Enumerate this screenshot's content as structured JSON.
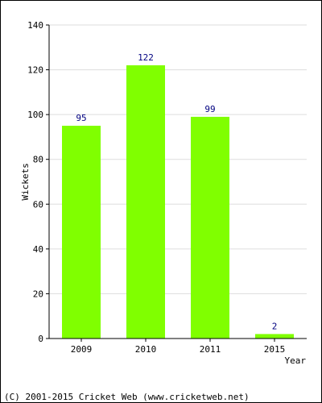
{
  "chart_data": {
    "type": "bar",
    "categories": [
      "2009",
      "2010",
      "2011",
      "2015"
    ],
    "values": [
      95,
      122,
      99,
      2
    ],
    "data_labels": [
      "95",
      "122",
      "99",
      "2"
    ],
    "title": "",
    "xlabel": "Year",
    "ylabel": "Wickets",
    "ylim": [
      0,
      140
    ],
    "yticks": [
      "0",
      "20",
      "40",
      "60",
      "80",
      "100",
      "120",
      "140"
    ],
    "grid": true,
    "legend": "none",
    "bar_color": "#80ff00",
    "label_color": "#000080"
  },
  "footer": {
    "copyright": "(C) 2001-2015 Cricket Web (www.cricketweb.net)"
  }
}
